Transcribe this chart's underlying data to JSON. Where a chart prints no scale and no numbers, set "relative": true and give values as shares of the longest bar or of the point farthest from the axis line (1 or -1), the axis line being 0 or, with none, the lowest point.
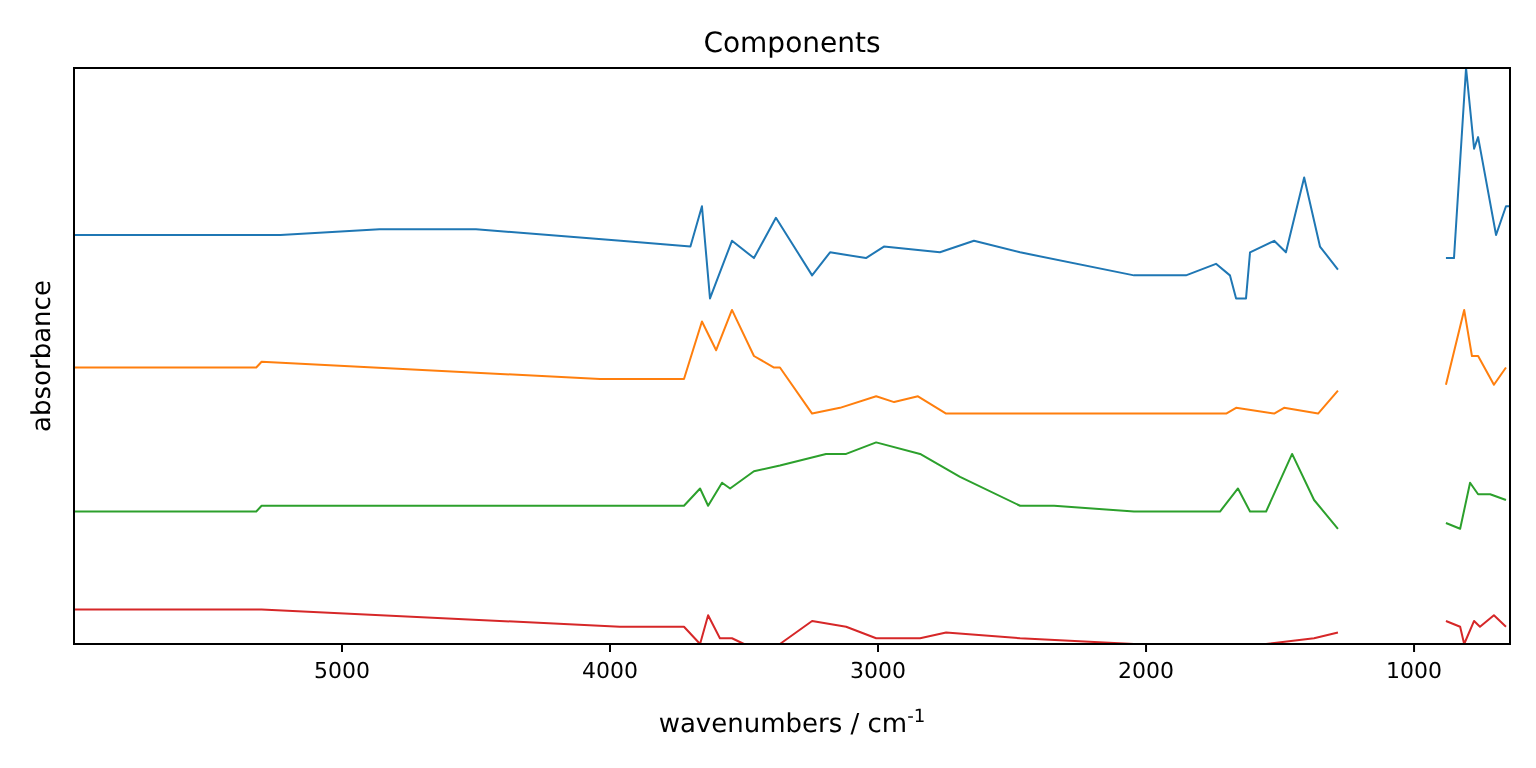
{
  "chart_data": {
    "type": "line",
    "title": "Components",
    "xlabel": "wavenumbers / cm$^{-1}$",
    "ylabel": "absorbance",
    "relative": true,
    "xlim": [
      6000,
      642
    ],
    "xticks": [
      5000,
      4000,
      3000,
      2000,
      1000
    ],
    "tick_labels": "x",
    "line_style": "solid",
    "series": [
      {
        "color": "#1f77b4",
        "x": [
          6000,
          5230,
          4860,
          4500,
          3960,
          3700,
          3657,
          3627,
          3545,
          3463,
          3381,
          3246,
          3179,
          3045,
          2978,
          2769,
          2642,
          2470,
          2045,
          1851,
          1739,
          1687,
          1664,
          1627,
          1612,
          1522,
          1478,
          1410,
          1351,
          1284
        ],
        "values": [
          0.71,
          0.71,
          0.72,
          0.72,
          0.7,
          0.69,
          0.76,
          0.6,
          0.7,
          0.67,
          0.74,
          0.64,
          0.68,
          0.67,
          0.69,
          0.68,
          0.7,
          0.68,
          0.64,
          0.64,
          0.66,
          0.64,
          0.6,
          0.6,
          0.68,
          0.7,
          0.68,
          0.81,
          0.69,
          0.65
        ]
      },
      {
        "color": "#1f77b4",
        "x": [
          881,
          851,
          806,
          776,
          761,
          694,
          657,
          642
        ],
        "values": [
          0.67,
          0.67,
          1.0,
          0.86,
          0.88,
          0.71,
          0.76,
          0.76
        ]
      },
      {
        "color": "#ff7f0e",
        "x": [
          6000,
          5320,
          5300,
          4037,
          3724,
          3657,
          3604,
          3545,
          3463,
          3388,
          3366,
          3246,
          3142,
          3007,
          2940,
          2851,
          2746,
          2470,
          2045,
          1701,
          1664,
          1522,
          1485,
          1358,
          1284
        ],
        "values": [
          0.48,
          0.48,
          0.49,
          0.46,
          0.46,
          0.56,
          0.51,
          0.58,
          0.5,
          0.48,
          0.48,
          0.4,
          0.41,
          0.43,
          0.42,
          0.43,
          0.4,
          0.4,
          0.4,
          0.4,
          0.41,
          0.4,
          0.41,
          0.4,
          0.44
        ]
      },
      {
        "color": "#ff7f0e",
        "x": [
          881,
          813,
          784,
          761,
          702,
          657
        ],
        "values": [
          0.45,
          0.58,
          0.5,
          0.5,
          0.45,
          0.48
        ]
      },
      {
        "color": "#2ca02c",
        "x": [
          6000,
          5320,
          5300,
          3960,
          3724,
          3664,
          3634,
          3582,
          3552,
          3463,
          3366,
          3194,
          3119,
          3007,
          2843,
          2694,
          2470,
          2343,
          2045,
          1724,
          1657,
          1612,
          1552,
          1455,
          1373,
          1284
        ],
        "values": [
          0.23,
          0.23,
          0.24,
          0.24,
          0.24,
          0.27,
          0.24,
          0.28,
          0.27,
          0.3,
          0.31,
          0.33,
          0.33,
          0.35,
          0.33,
          0.29,
          0.24,
          0.24,
          0.23,
          0.23,
          0.27,
          0.23,
          0.23,
          0.33,
          0.25,
          0.2
        ]
      },
      {
        "color": "#2ca02c",
        "x": [
          881,
          828,
          791,
          761,
          716,
          657
        ],
        "values": [
          0.21,
          0.2,
          0.28,
          0.26,
          0.26,
          0.25
        ]
      },
      {
        "color": "#d62728",
        "x": [
          6000,
          5320,
          5300,
          3963,
          3724,
          3664,
          3634,
          3590,
          3545,
          3500,
          3366,
          3246,
          3119,
          3007,
          2843,
          2746,
          2470,
          2045,
          1552,
          1373,
          1284
        ],
        "values": [
          0.06,
          0.06,
          0.06,
          0.03,
          0.03,
          0,
          0.05,
          0.01,
          0.01,
          0,
          0,
          0.04,
          0.03,
          0.01,
          0.01,
          0.02,
          0.01,
          0,
          0,
          0.01,
          0.02
        ]
      },
      {
        "color": "#d62728",
        "x": [
          881,
          828,
          813,
          776,
          754,
          702,
          657
        ],
        "values": [
          0.04,
          0.03,
          0,
          0.04,
          0.03,
          0.05,
          0.03
        ]
      }
    ]
  }
}
